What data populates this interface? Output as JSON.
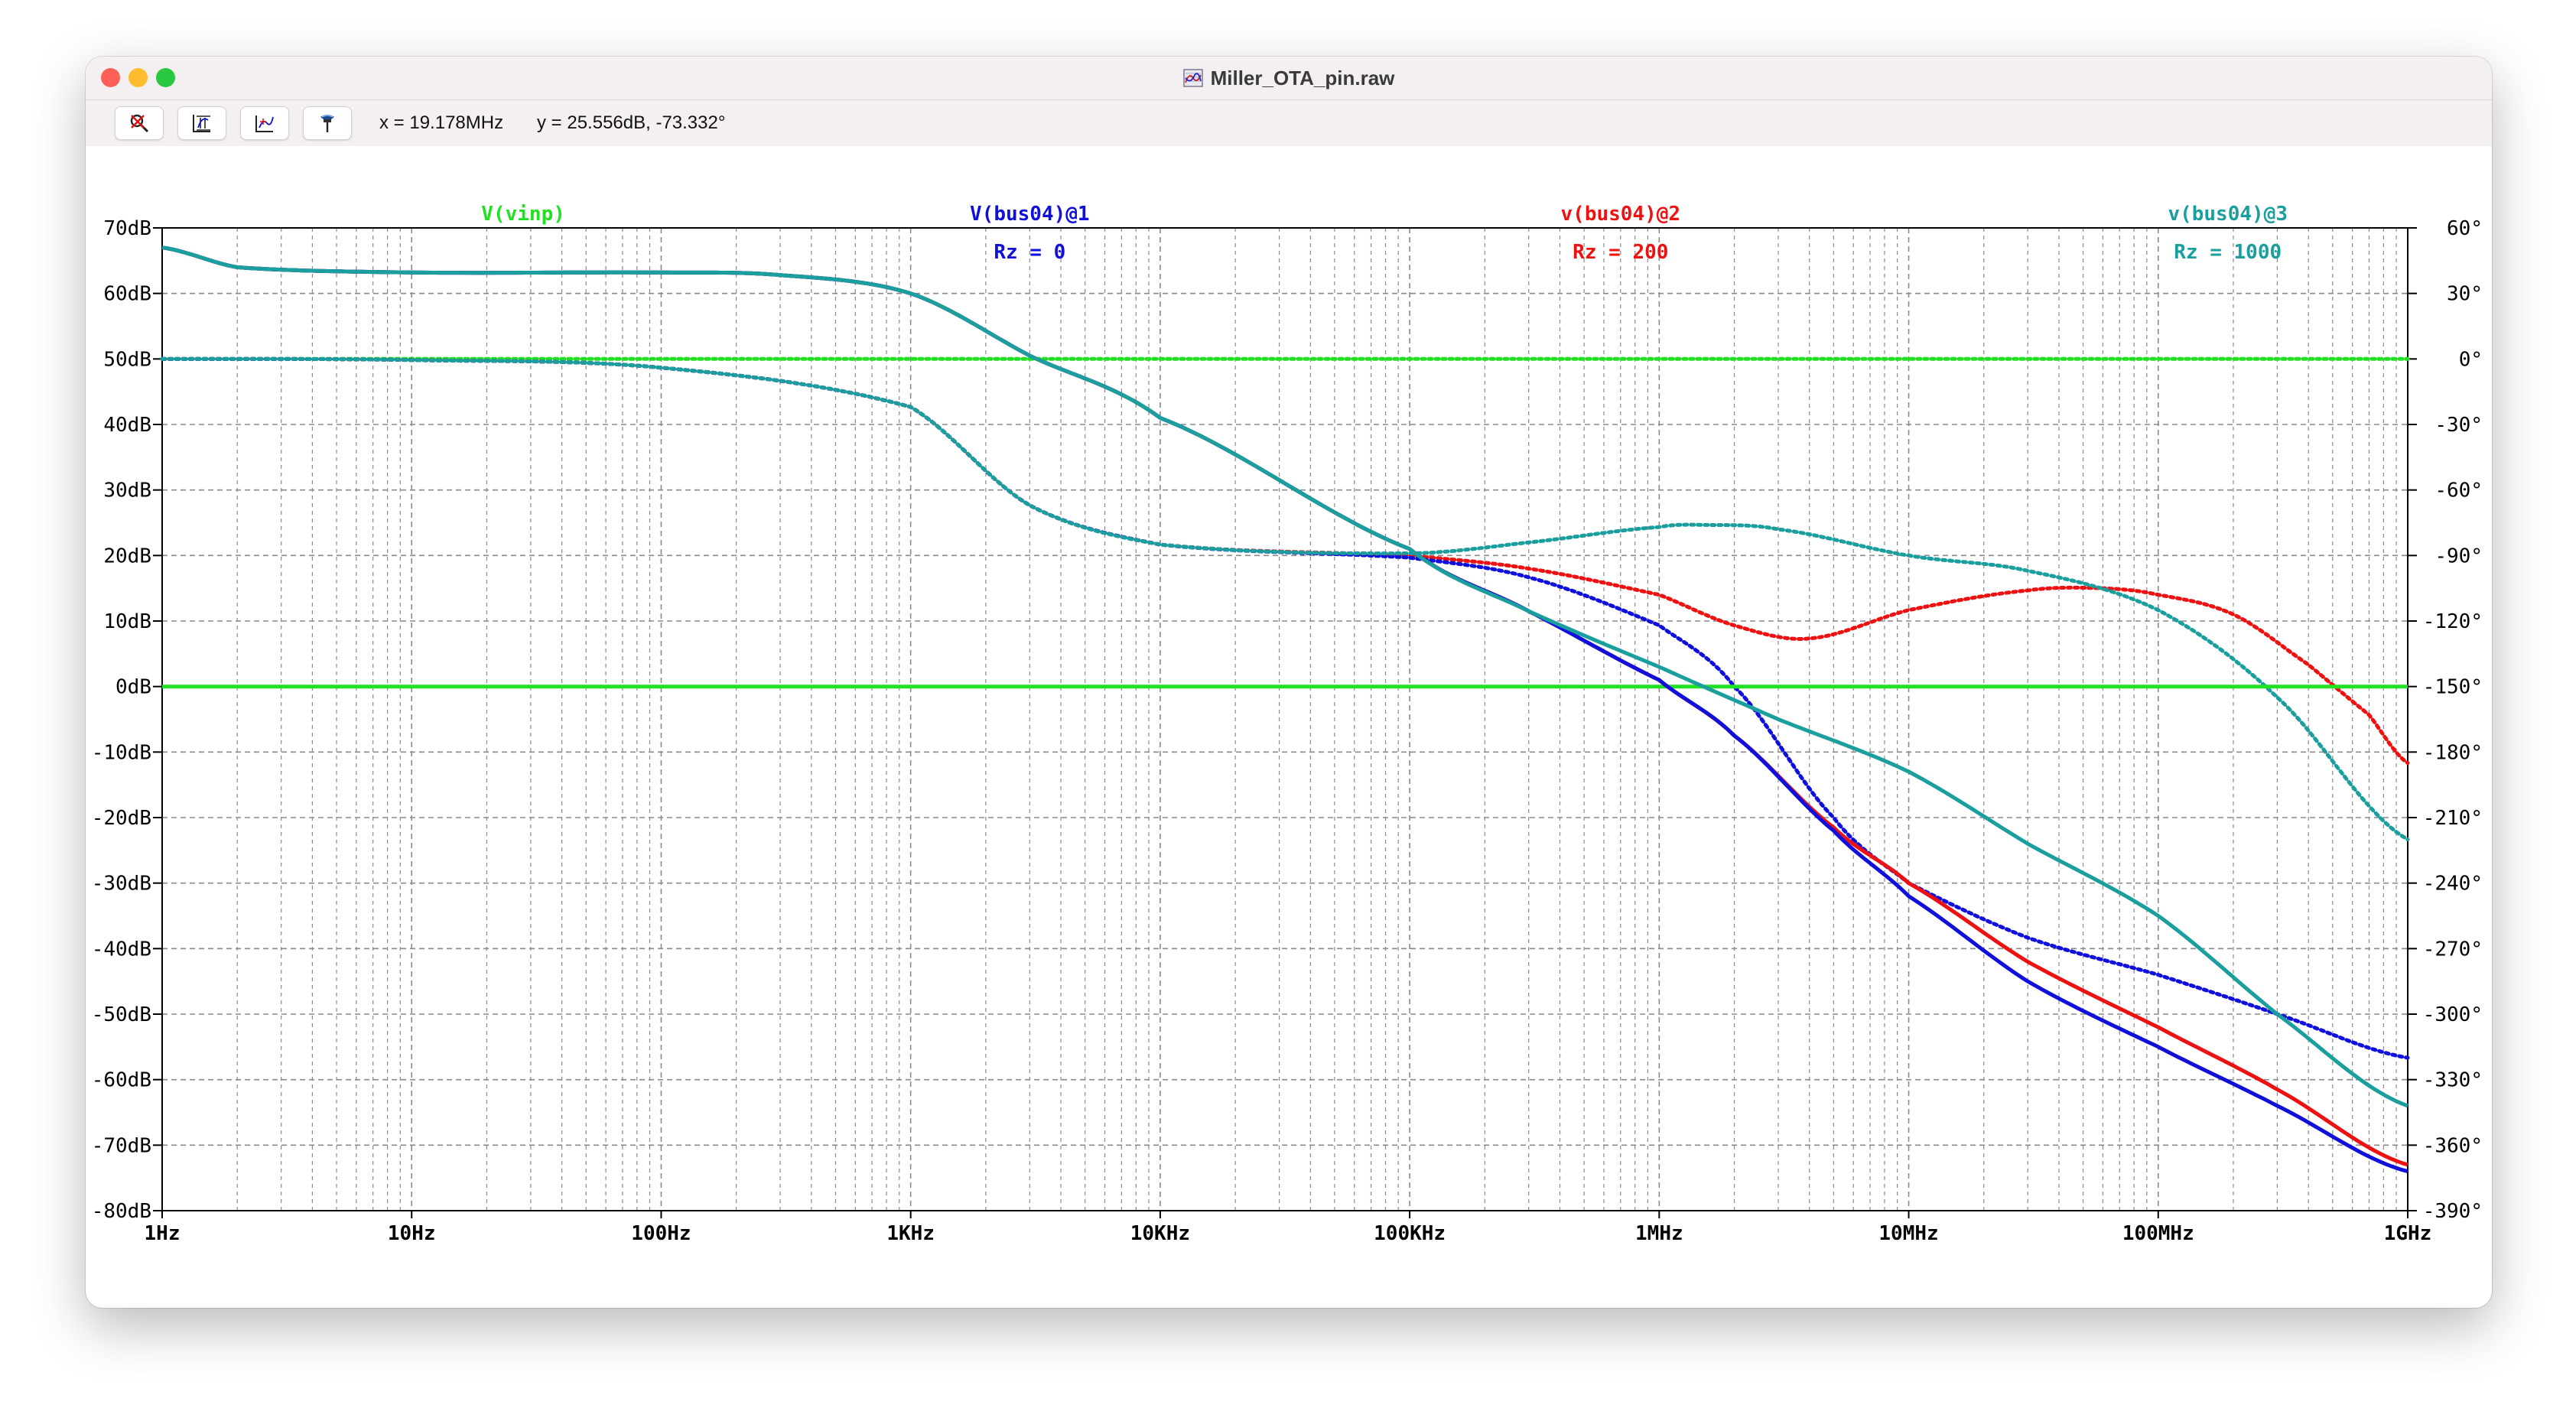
{
  "window": {
    "title": "Miller_OTA_pin.raw"
  },
  "toolbar": {
    "buttons": [
      {
        "name": "zoom-out-icon"
      },
      {
        "name": "autorange-icon"
      },
      {
        "name": "pan-icon"
      },
      {
        "name": "pin-icon"
      }
    ],
    "cursor_x": "x = 19.178MHz",
    "cursor_y": "y = 25.556dB, -73.332°"
  },
  "colors": {
    "green": "#22e022",
    "blue": "#1010dd",
    "red": "#ee1111",
    "teal": "#1a9e9e",
    "grid": "#8a8a8a"
  },
  "chart_data": {
    "type": "line",
    "x_scale": "log",
    "xlim": [
      1,
      1000000000
    ],
    "left_ylim": [
      -80,
      70
    ],
    "right_ylim": [
      -390,
      60
    ],
    "grid": true,
    "x_ticks": [
      {
        "value": 1,
        "label": "1Hz"
      },
      {
        "value": 10,
        "label": "10Hz"
      },
      {
        "value": 100,
        "label": "100Hz"
      },
      {
        "value": 1000,
        "label": "1KHz"
      },
      {
        "value": 10000,
        "label": "10KHz"
      },
      {
        "value": 100000,
        "label": "100KHz"
      },
      {
        "value": 1000000,
        "label": "1MHz"
      },
      {
        "value": 10000000,
        "label": "10MHz"
      },
      {
        "value": 100000000,
        "label": "100MHz"
      },
      {
        "value": 1000000000,
        "label": "1GHz"
      }
    ],
    "left_ticks": [
      {
        "value": 70,
        "label": "70dB"
      },
      {
        "value": 60,
        "label": "60dB"
      },
      {
        "value": 50,
        "label": "50dB"
      },
      {
        "value": 40,
        "label": "40dB"
      },
      {
        "value": 30,
        "label": "30dB"
      },
      {
        "value": 20,
        "label": "20dB"
      },
      {
        "value": 10,
        "label": "10dB"
      },
      {
        "value": 0,
        "label": "0dB"
      },
      {
        "value": -10,
        "label": "-10dB"
      },
      {
        "value": -20,
        "label": "-20dB"
      },
      {
        "value": -30,
        "label": "-30dB"
      },
      {
        "value": -40,
        "label": "-40dB"
      },
      {
        "value": -50,
        "label": "-50dB"
      },
      {
        "value": -60,
        "label": "-60dB"
      },
      {
        "value": -70,
        "label": "-70dB"
      },
      {
        "value": -80,
        "label": "-80dB"
      }
    ],
    "right_ticks": [
      {
        "value": 60,
        "label": "60°"
      },
      {
        "value": 30,
        "label": "30°"
      },
      {
        "value": 0,
        "label": "0°"
      },
      {
        "value": -30,
        "label": "-30°"
      },
      {
        "value": -60,
        "label": "-60°"
      },
      {
        "value": -90,
        "label": "-90°"
      },
      {
        "value": -120,
        "label": "-120°"
      },
      {
        "value": -150,
        "label": "-150°"
      },
      {
        "value": -180,
        "label": "-180°"
      },
      {
        "value": -210,
        "label": "-210°"
      },
      {
        "value": -240,
        "label": "-240°"
      },
      {
        "value": -270,
        "label": "-270°"
      },
      {
        "value": -300,
        "label": "-300°"
      },
      {
        "value": -330,
        "label": "-330°"
      },
      {
        "value": -360,
        "label": "-360°"
      },
      {
        "value": -390,
        "label": "-390°"
      }
    ],
    "legend": [
      {
        "label": "V(vinp)",
        "sub": "",
        "color": "#22e022",
        "freq": 28
      },
      {
        "label": "V(bus04)@1",
        "sub": "Rz = 0",
        "color": "#1010dd",
        "freq": 3000
      },
      {
        "label": "v(bus04)@2",
        "sub": "Rz = 200",
        "color": "#ee1111",
        "freq": 700000
      },
      {
        "label": "v(bus04)@3",
        "sub": "Rz = 1000",
        "color": "#1a9e9e",
        "freq": 190000000
      }
    ],
    "series": [
      {
        "name": "V(vinp)",
        "color": "#22e022",
        "magnitude": [
          [
            1,
            0
          ],
          [
            1000000000,
            0
          ]
        ],
        "phase": [
          [
            1,
            0
          ],
          [
            1000000000,
            0
          ]
        ]
      },
      {
        "name": "V(bus04)@1",
        "color": "#1010dd",
        "magnitude": [
          [
            1,
            67
          ],
          [
            2,
            64
          ],
          [
            10,
            63.2
          ],
          [
            100,
            63.2
          ],
          [
            300,
            62.8
          ],
          [
            1000,
            60
          ],
          [
            3000,
            50.5
          ],
          [
            10000,
            41
          ],
          [
            100000,
            21
          ],
          [
            300000,
            11.5
          ],
          [
            1000000,
            1
          ],
          [
            2000000,
            -7.5
          ],
          [
            5000000,
            -22
          ],
          [
            10000000,
            -32
          ],
          [
            30000000,
            -45
          ],
          [
            100000000,
            -55
          ],
          [
            300000000,
            -64
          ],
          [
            1000000000,
            -74
          ]
        ],
        "phase": [
          [
            1,
            0
          ],
          [
            10,
            -0.5
          ],
          [
            100,
            -4
          ],
          [
            1000,
            -22
          ],
          [
            3000,
            -67
          ],
          [
            10000,
            -85
          ],
          [
            100000,
            -91
          ],
          [
            300000,
            -100
          ],
          [
            1000000,
            -122
          ],
          [
            2000000,
            -150
          ],
          [
            5000000,
            -210
          ],
          [
            10000000,
            -240
          ],
          [
            30000000,
            -265
          ],
          [
            100000000,
            -282
          ],
          [
            300000000,
            -300
          ],
          [
            1000000000,
            -320
          ]
        ]
      },
      {
        "name": "v(bus04)@2",
        "color": "#ee1111",
        "magnitude": [
          [
            1,
            67
          ],
          [
            2,
            64
          ],
          [
            10,
            63.2
          ],
          [
            100,
            63.2
          ],
          [
            300,
            62.8
          ],
          [
            1000,
            60
          ],
          [
            3000,
            50.5
          ],
          [
            10000,
            41
          ],
          [
            100000,
            21
          ],
          [
            300000,
            11.5
          ],
          [
            1000000,
            1
          ],
          [
            2000000,
            -7.5
          ],
          [
            5000000,
            -21.5
          ],
          [
            10000000,
            -30
          ],
          [
            30000000,
            -42
          ],
          [
            100000000,
            -52
          ],
          [
            300000000,
            -61.5
          ],
          [
            1000000000,
            -73
          ]
        ],
        "phase": [
          [
            1,
            0
          ],
          [
            10,
            -0.5
          ],
          [
            100,
            -4
          ],
          [
            1000,
            -22
          ],
          [
            3000,
            -67
          ],
          [
            10000,
            -85
          ],
          [
            100000,
            -90
          ],
          [
            300000,
            -96
          ],
          [
            1000000,
            -108
          ],
          [
            2000000,
            -122
          ],
          [
            4000000,
            -128
          ],
          [
            10000000,
            -115
          ],
          [
            30000000,
            -106
          ],
          [
            60000000,
            -105
          ],
          [
            100000000,
            -108
          ],
          [
            200000000,
            -117
          ],
          [
            400000000,
            -140
          ],
          [
            700000000,
            -163
          ],
          [
            1000000000,
            -185
          ]
        ]
      },
      {
        "name": "v(bus04)@3",
        "color": "#1a9e9e",
        "magnitude": [
          [
            1,
            67
          ],
          [
            2,
            64
          ],
          [
            10,
            63.2
          ],
          [
            100,
            63.2
          ],
          [
            300,
            62.8
          ],
          [
            1000,
            60
          ],
          [
            3000,
            50.5
          ],
          [
            10000,
            41
          ],
          [
            100000,
            21
          ],
          [
            300000,
            11.5
          ],
          [
            1000000,
            3
          ],
          [
            3000000,
            -5
          ],
          [
            10000000,
            -13
          ],
          [
            30000000,
            -24
          ],
          [
            100000000,
            -35
          ],
          [
            300000000,
            -50
          ],
          [
            1000000000,
            -64
          ]
        ],
        "phase": [
          [
            1,
            0
          ],
          [
            10,
            -0.5
          ],
          [
            100,
            -4
          ],
          [
            1000,
            -22
          ],
          [
            3000,
            -67
          ],
          [
            10000,
            -85
          ],
          [
            100000,
            -89
          ],
          [
            300000,
            -84
          ],
          [
            1000000,
            -77
          ],
          [
            1500000,
            -76
          ],
          [
            3000000,
            -78
          ],
          [
            10000000,
            -90
          ],
          [
            30000000,
            -97
          ],
          [
            100000000,
            -115
          ],
          [
            300000000,
            -155
          ],
          [
            1000000000,
            -220
          ]
        ]
      }
    ]
  }
}
